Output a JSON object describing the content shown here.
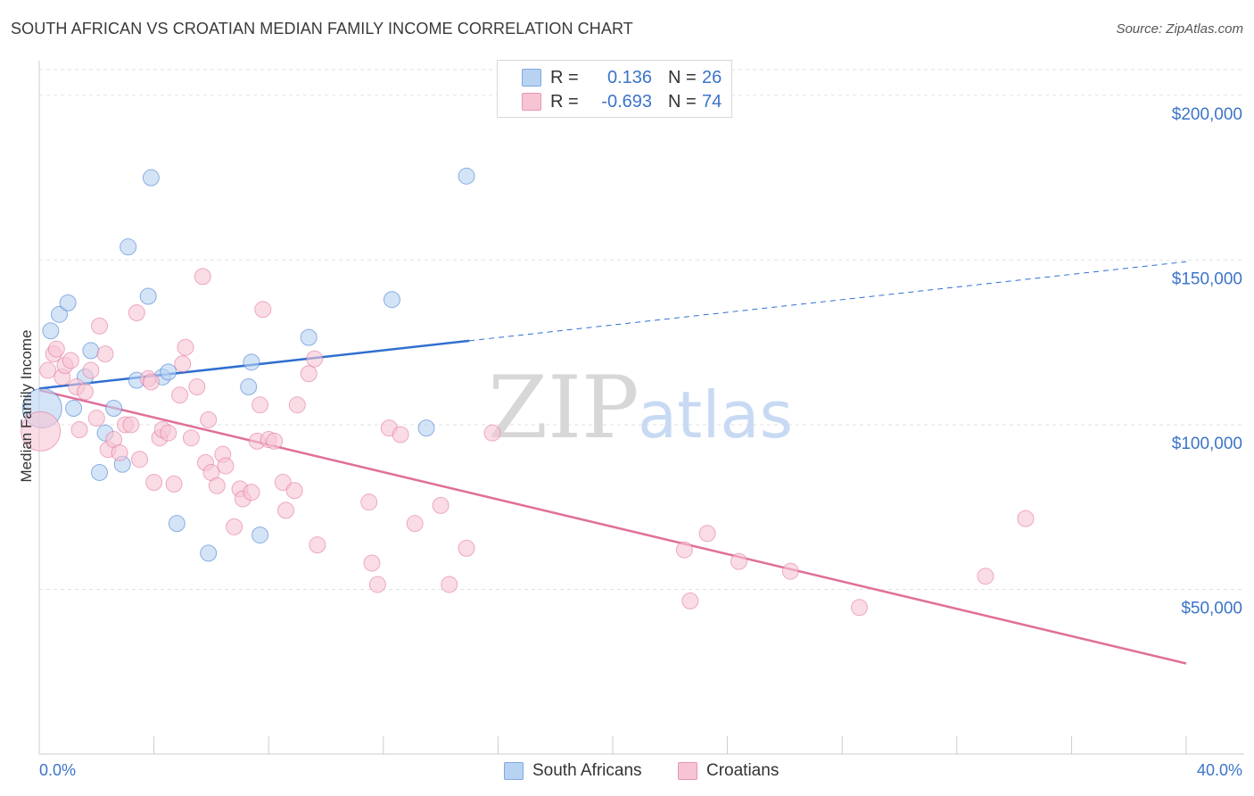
{
  "header": {
    "title": "SOUTH AFRICAN VS CROATIAN MEDIAN FAMILY INCOME CORRELATION CHART",
    "source": "Source: ZipAtlas.com"
  },
  "watermark": {
    "zip": "ZIP",
    "atlas": "atlas"
  },
  "legend": {
    "rows": [
      {
        "r_label": "R =",
        "r_value": "0.136",
        "n_label": "N =",
        "n_value": "26",
        "color": "#a8c8f0"
      },
      {
        "r_label": "R =",
        "r_value": "-0.693",
        "n_label": "N =",
        "n_value": "74",
        "color": "#f5b8cc"
      }
    ]
  },
  "bottom_legend": {
    "items": [
      {
        "label": "South Africans",
        "color": "#a8c8f0"
      },
      {
        "label": "Croatians",
        "color": "#f5b8cc"
      }
    ]
  },
  "chart_data": {
    "type": "scatter",
    "ylabel": "Median Family Income",
    "xlim": [
      0,
      40
    ],
    "ylim": [
      0,
      210000
    ],
    "x_tick_labels": [
      "0.0%",
      "40.0%"
    ],
    "y_ticks": [
      50000,
      100000,
      150000,
      200000
    ],
    "y_tick_labels": [
      "$50,000",
      "$100,000",
      "$150,000",
      "$200,000"
    ],
    "grid": true,
    "series": [
      {
        "name": "South Africans",
        "color": "#3a76d0",
        "fill": "#b8d2f2",
        "r": 0.136,
        "n": 26,
        "trend": {
          "x": [
            0,
            15
          ],
          "y": [
            111000,
            125500
          ],
          "dashed_to_x": 40,
          "dashed_to_y": 149500
        },
        "points": [
          [
            0.1,
            105000,
            22
          ],
          [
            0.4,
            128500,
            9
          ],
          [
            0.7,
            133500,
            9
          ],
          [
            1.0,
            137000,
            9
          ],
          [
            1.2,
            105000,
            9
          ],
          [
            1.6,
            114500,
            9
          ],
          [
            1.8,
            122500,
            9
          ],
          [
            2.1,
            85500,
            9
          ],
          [
            2.3,
            97500,
            9
          ],
          [
            2.6,
            105000,
            9
          ],
          [
            2.9,
            88000,
            9
          ],
          [
            3.1,
            154000,
            9
          ],
          [
            3.4,
            113500,
            9
          ],
          [
            3.8,
            139000,
            9
          ],
          [
            3.9,
            175000,
            9
          ],
          [
            4.3,
            114500,
            9
          ],
          [
            4.5,
            116000,
            9
          ],
          [
            4.8,
            70000,
            9
          ],
          [
            5.9,
            61000,
            9
          ],
          [
            7.3,
            111500,
            9
          ],
          [
            7.4,
            119000,
            9
          ],
          [
            7.7,
            66500,
            9
          ],
          [
            9.4,
            126500,
            9
          ],
          [
            12.3,
            138000,
            9
          ],
          [
            13.5,
            99000,
            9
          ],
          [
            14.9,
            175500,
            9
          ]
        ]
      },
      {
        "name": "Croatians",
        "color": "#e0709a",
        "fill": "#f7c4d4",
        "r": -0.693,
        "n": 74,
        "trend": {
          "x": [
            0,
            40
          ],
          "y": [
            110500,
            27500
          ]
        },
        "points": [
          [
            0.05,
            98000,
            22
          ],
          [
            0.3,
            116500,
            9
          ],
          [
            0.5,
            121500,
            9
          ],
          [
            0.6,
            123000,
            9
          ],
          [
            0.8,
            114500,
            9
          ],
          [
            0.9,
            118000,
            9
          ],
          [
            1.1,
            119500,
            9
          ],
          [
            1.3,
            111500,
            9
          ],
          [
            1.4,
            98500,
            9
          ],
          [
            1.6,
            110000,
            9
          ],
          [
            1.8,
            116500,
            9
          ],
          [
            2.0,
            102000,
            9
          ],
          [
            2.1,
            130000,
            9
          ],
          [
            2.3,
            121500,
            9
          ],
          [
            2.4,
            92500,
            9
          ],
          [
            2.6,
            95500,
            9
          ],
          [
            2.8,
            91500,
            9
          ],
          [
            3.0,
            100000,
            9
          ],
          [
            3.2,
            100000,
            9
          ],
          [
            3.4,
            134000,
            9
          ],
          [
            3.5,
            89500,
            9
          ],
          [
            3.8,
            114000,
            9
          ],
          [
            3.9,
            113000,
            9
          ],
          [
            4.0,
            82500,
            9
          ],
          [
            4.2,
            96000,
            9
          ],
          [
            4.3,
            98500,
            9
          ],
          [
            4.5,
            97500,
            9
          ],
          [
            4.7,
            82000,
            9
          ],
          [
            4.9,
            109000,
            9
          ],
          [
            5.0,
            118500,
            9
          ],
          [
            5.1,
            123500,
            9
          ],
          [
            5.3,
            96000,
            9
          ],
          [
            5.5,
            111500,
            9
          ],
          [
            5.7,
            145000,
            9
          ],
          [
            5.8,
            88500,
            9
          ],
          [
            5.9,
            101500,
            9
          ],
          [
            6.0,
            85500,
            9
          ],
          [
            6.2,
            81500,
            9
          ],
          [
            6.4,
            91000,
            9
          ],
          [
            6.5,
            87500,
            9
          ],
          [
            6.8,
            69000,
            9
          ],
          [
            7.0,
            80500,
            9
          ],
          [
            7.1,
            77500,
            9
          ],
          [
            7.4,
            79500,
            9
          ],
          [
            7.6,
            95000,
            9
          ],
          [
            7.7,
            106000,
            9
          ],
          [
            7.8,
            135000,
            9
          ],
          [
            8.0,
            95500,
            9
          ],
          [
            8.2,
            95000,
            9
          ],
          [
            8.5,
            82500,
            9
          ],
          [
            8.6,
            74000,
            9
          ],
          [
            8.9,
            80000,
            9
          ],
          [
            9.0,
            106000,
            9
          ],
          [
            9.4,
            115500,
            9
          ],
          [
            9.6,
            120000,
            9
          ],
          [
            9.7,
            63500,
            9
          ],
          [
            11.5,
            76500,
            9
          ],
          [
            11.6,
            58000,
            9
          ],
          [
            11.8,
            51500,
            9
          ],
          [
            12.2,
            99000,
            9
          ],
          [
            12.6,
            97000,
            9
          ],
          [
            13.1,
            70000,
            9
          ],
          [
            14.0,
            75500,
            9
          ],
          [
            14.3,
            51500,
            9
          ],
          [
            14.9,
            62500,
            9
          ],
          [
            15.8,
            97500,
            9
          ],
          [
            22.5,
            62000,
            9
          ],
          [
            22.7,
            46500,
            9
          ],
          [
            23.3,
            67000,
            9
          ],
          [
            24.4,
            58500,
            9
          ],
          [
            26.2,
            55500,
            9
          ],
          [
            28.6,
            44500,
            9
          ],
          [
            33.0,
            54000,
            9
          ],
          [
            34.4,
            71500,
            9
          ]
        ]
      }
    ]
  }
}
